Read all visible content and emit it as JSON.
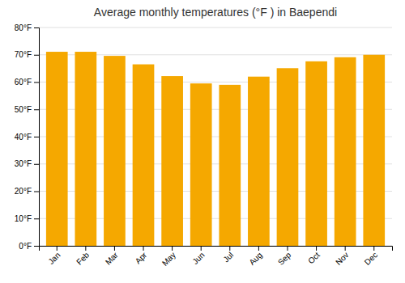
{
  "chart_data": {
    "type": "bar",
    "title": "Average monthly temperatures (°F ) in Baependi",
    "categories": [
      "Jan",
      "Feb",
      "Mar",
      "Apr",
      "May",
      "Jun",
      "Jul",
      "Aug",
      "Sep",
      "Oct",
      "Nov",
      "Dec"
    ],
    "values": [
      71.1,
      71.1,
      69.6,
      66.5,
      62.2,
      59.5,
      59.0,
      62.0,
      65.1,
      67.6,
      69.1,
      70.0
    ],
    "color": "#F5A800",
    "ylim": [
      0,
      80
    ],
    "yticks": [
      {
        "value": 0,
        "label": "0°F"
      },
      {
        "value": 10,
        "label": "10°F"
      },
      {
        "value": 20,
        "label": "20°F"
      },
      {
        "value": 30,
        "label": "30°F"
      },
      {
        "value": 40,
        "label": "40°F"
      },
      {
        "value": 50,
        "label": "50°F"
      },
      {
        "value": 60,
        "label": "60°F"
      },
      {
        "value": 70,
        "label": "70°F"
      },
      {
        "value": 80,
        "label": "80°F"
      }
    ],
    "grid": true
  }
}
